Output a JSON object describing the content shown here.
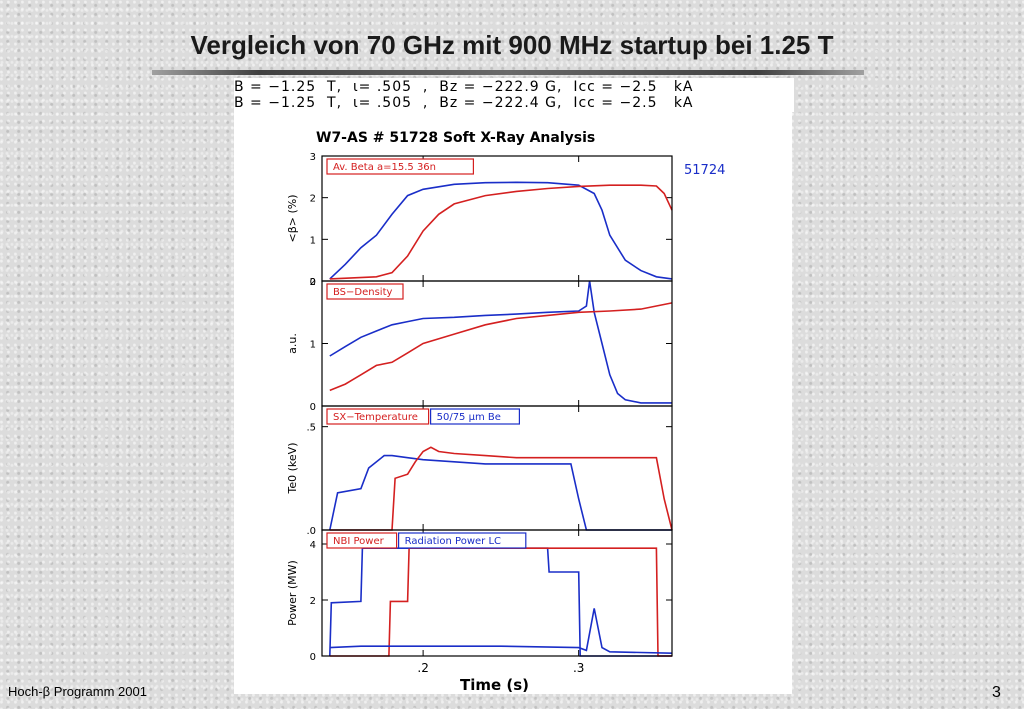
{
  "slide": {
    "title": "Vergleich von 70 GHz mit 900 MHz startup bei 1.25 T",
    "footer_left": "Hoch-β Programm 2001",
    "page_number": "3"
  },
  "header_lines": [
    "B = −1.25  T,  ι= .505  ,  Bz = −222.9 G,  Icc = −2.5   kA",
    "B = −1.25  T,  ι= .505  ,  Bz = −222.4 G,  Icc = −2.5   kA"
  ],
  "colors": {
    "red": "#d42020",
    "blue": "#1a2ec8",
    "frame": "#000000"
  },
  "chart_data": {
    "type": "line",
    "title": "W7-AS # 51728  Soft X-Ray Analysis",
    "second_shot": "51724",
    "xlabel": "Time (s)",
    "xlim": [
      0.135,
      0.36
    ],
    "xticks": [
      ".2",
      ".3"
    ],
    "panels": [
      {
        "id": "beta",
        "ylabel": "<β> (%)",
        "ylim": [
          0,
          3
        ],
        "yticks": [
          "0",
          "1",
          "2",
          "3"
        ],
        "legend": [
          {
            "text": "Av. Beta  a=15.5  36n",
            "color": "red"
          }
        ],
        "series": [
          {
            "color": "blue",
            "x": [
              0.14,
              0.15,
              0.16,
              0.17,
              0.18,
              0.19,
              0.2,
              0.22,
              0.24,
              0.26,
              0.28,
              0.3,
              0.31,
              0.315,
              0.32,
              0.33,
              0.34,
              0.35,
              0.36
            ],
            "y": [
              0.05,
              0.4,
              0.8,
              1.1,
              1.6,
              2.05,
              2.2,
              2.32,
              2.36,
              2.37,
              2.36,
              2.3,
              2.1,
              1.7,
              1.1,
              0.5,
              0.25,
              0.1,
              0.05
            ]
          },
          {
            "color": "red",
            "x": [
              0.14,
              0.17,
              0.18,
              0.19,
              0.2,
              0.21,
              0.22,
              0.24,
              0.26,
              0.28,
              0.3,
              0.32,
              0.34,
              0.35,
              0.355,
              0.36
            ],
            "y": [
              0.05,
              0.1,
              0.2,
              0.6,
              1.2,
              1.6,
              1.85,
              2.05,
              2.15,
              2.22,
              2.27,
              2.3,
              2.3,
              2.28,
              2.1,
              1.7
            ]
          }
        ]
      },
      {
        "id": "density",
        "ylabel": "a.u.",
        "ylim": [
          0,
          2
        ],
        "yticks": [
          "0",
          "1",
          "2"
        ],
        "legend": [
          {
            "text": "BS−Density",
            "color": "red"
          }
        ],
        "series": [
          {
            "color": "blue",
            "x": [
              0.14,
              0.15,
              0.16,
              0.17,
              0.18,
              0.19,
              0.2,
              0.22,
              0.24,
              0.26,
              0.28,
              0.3,
              0.305,
              0.307,
              0.31,
              0.315,
              0.32,
              0.325,
              0.33,
              0.34,
              0.35,
              0.36
            ],
            "y": [
              0.8,
              0.95,
              1.1,
              1.2,
              1.3,
              1.35,
              1.4,
              1.42,
              1.45,
              1.47,
              1.5,
              1.52,
              1.6,
              2.0,
              1.5,
              1.0,
              0.5,
              0.2,
              0.1,
              0.05,
              0.05,
              0.05
            ]
          },
          {
            "color": "red",
            "x": [
              0.14,
              0.15,
              0.16,
              0.17,
              0.18,
              0.19,
              0.2,
              0.22,
              0.24,
              0.26,
              0.28,
              0.3,
              0.32,
              0.34,
              0.35,
              0.36
            ],
            "y": [
              0.25,
              0.35,
              0.5,
              0.65,
              0.7,
              0.85,
              1.0,
              1.15,
              1.3,
              1.4,
              1.45,
              1.5,
              1.52,
              1.55,
              1.6,
              1.65
            ]
          }
        ]
      },
      {
        "id": "temperature",
        "ylabel": "Te0 (keV)",
        "ylim": [
          0,
          0.6
        ],
        "yticks": [
          ".0",
          ".5"
        ],
        "legend": [
          {
            "text": "SX−Temperature",
            "color": "red"
          },
          {
            "text": "50/75  μm Be",
            "color": "blue"
          }
        ],
        "series": [
          {
            "color": "blue",
            "x": [
              0.14,
              0.145,
              0.16,
              0.165,
              0.175,
              0.18,
              0.19,
              0.2,
              0.22,
              0.24,
              0.26,
              0.28,
              0.295,
              0.3,
              0.305,
              0.31,
              0.36
            ],
            "y": [
              0.0,
              0.18,
              0.2,
              0.3,
              0.36,
              0.36,
              0.35,
              0.34,
              0.33,
              0.32,
              0.32,
              0.32,
              0.32,
              0.15,
              0.0,
              0.0,
              0.0
            ]
          },
          {
            "color": "red",
            "x": [
              0.14,
              0.18,
              0.182,
              0.19,
              0.195,
              0.2,
              0.205,
              0.21,
              0.22,
              0.24,
              0.26,
              0.28,
              0.3,
              0.32,
              0.34,
              0.35,
              0.355,
              0.36
            ],
            "y": [
              0.0,
              0.0,
              0.25,
              0.27,
              0.33,
              0.38,
              0.4,
              0.38,
              0.37,
              0.36,
              0.35,
              0.35,
              0.35,
              0.35,
              0.35,
              0.35,
              0.15,
              0.0
            ]
          }
        ]
      },
      {
        "id": "power",
        "ylabel": "Power (MW)",
        "ylim": [
          0,
          4.5
        ],
        "yticks": [
          "0",
          "2",
          "4"
        ],
        "legend": [
          {
            "text": "NBI Power",
            "color": "red"
          },
          {
            "text": "Radiation Power LC",
            "color": "blue"
          }
        ],
        "series": [
          {
            "color": "blue",
            "x": [
              0.14,
              0.141,
              0.16,
              0.161,
              0.28,
              0.281,
              0.3,
              0.301,
              0.31,
              0.311,
              0.36
            ],
            "y": [
              0.0,
              1.9,
              1.95,
              3.85,
              3.85,
              3.0,
              3.0,
              0.0,
              0.0,
              0.0,
              0.0
            ]
          },
          {
            "color": "red",
            "x": [
              0.14,
              0.178,
              0.179,
              0.19,
              0.191,
              0.35,
              0.351,
              0.36
            ],
            "y": [
              0.0,
              0.0,
              1.95,
              1.95,
              3.85,
              3.85,
              0.0,
              0.0
            ]
          },
          {
            "color": "blue",
            "x": [
              0.14,
              0.16,
              0.2,
              0.25,
              0.3,
              0.305,
              0.31,
              0.315,
              0.32,
              0.36
            ],
            "y": [
              0.3,
              0.35,
              0.35,
              0.35,
              0.3,
              0.2,
              1.7,
              0.3,
              0.15,
              0.1
            ]
          }
        ]
      }
    ]
  }
}
